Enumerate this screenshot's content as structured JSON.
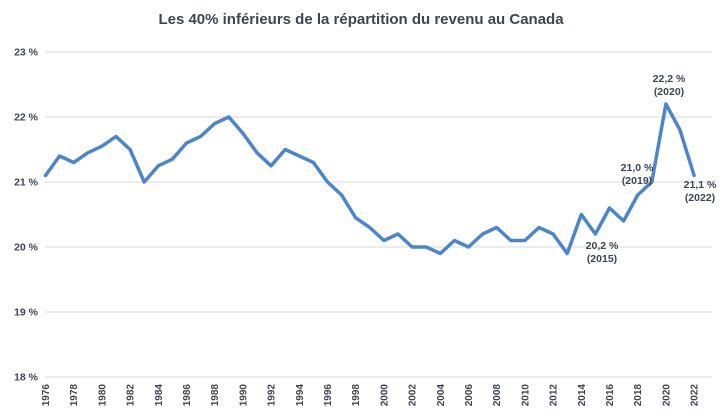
{
  "title": "Les 40% inférieurs de la répartition du revenu au Canada",
  "colors": {
    "line": "#4c86c8",
    "gridline": "#d9d9d9",
    "text": "#3d4650",
    "background": "#ffffff"
  },
  "chart_data": {
    "type": "line",
    "title": "Les 40% inférieurs de la répartition du revenu au Canada",
    "xlabel": "",
    "ylabel": "",
    "xlim": [
      1976,
      2022
    ],
    "ylim": [
      18,
      23
    ],
    "grid": "horizontal",
    "legend": "none",
    "y_ticks": [
      "23 %",
      "22 %",
      "21 %",
      "20 %",
      "19 %",
      "18 %"
    ],
    "y_tick_values": [
      23,
      22,
      21,
      20,
      19,
      18
    ],
    "x_tick_years": [
      1976,
      1978,
      1980,
      1982,
      1984,
      1986,
      1988,
      1990,
      1992,
      1994,
      1996,
      1998,
      2000,
      2002,
      2004,
      2006,
      2008,
      2010,
      2012,
      2014,
      2016,
      2018,
      2020,
      2022
    ],
    "x": [
      1976,
      1977,
      1978,
      1979,
      1980,
      1981,
      1982,
      1983,
      1984,
      1985,
      1986,
      1987,
      1988,
      1989,
      1990,
      1991,
      1992,
      1993,
      1994,
      1995,
      1996,
      1997,
      1998,
      1999,
      2000,
      2001,
      2002,
      2003,
      2004,
      2005,
      2006,
      2007,
      2008,
      2009,
      2010,
      2011,
      2012,
      2013,
      2014,
      2015,
      2016,
      2017,
      2018,
      2019,
      2020,
      2021,
      2022
    ],
    "values": [
      21.1,
      21.4,
      21.3,
      21.45,
      21.55,
      21.7,
      21.5,
      21.0,
      21.25,
      21.35,
      21.6,
      21.7,
      21.9,
      22.0,
      21.75,
      21.45,
      21.25,
      21.5,
      21.4,
      21.3,
      21.0,
      20.8,
      20.45,
      20.3,
      20.1,
      20.2,
      20.0,
      20.0,
      19.9,
      20.1,
      20.0,
      20.2,
      20.3,
      20.1,
      20.1,
      20.3,
      20.2,
      19.9,
      20.5,
      20.2,
      20.6,
      20.4,
      20.8,
      21.0,
      22.2,
      21.8,
      21.1
    ],
    "annotations": [
      {
        "year": 2015,
        "value": 20.2,
        "label_value": "20,2 %",
        "label_year": "(2015)"
      },
      {
        "year": 2019,
        "value": 21.0,
        "label_value": "21,0 %",
        "label_year": "(2019)"
      },
      {
        "year": 2020,
        "value": 22.2,
        "label_value": "22,2 %",
        "label_year": "(2020)"
      },
      {
        "year": 2022,
        "value": 21.1,
        "label_value": "21,1 %",
        "label_year": "(2022)"
      }
    ]
  }
}
